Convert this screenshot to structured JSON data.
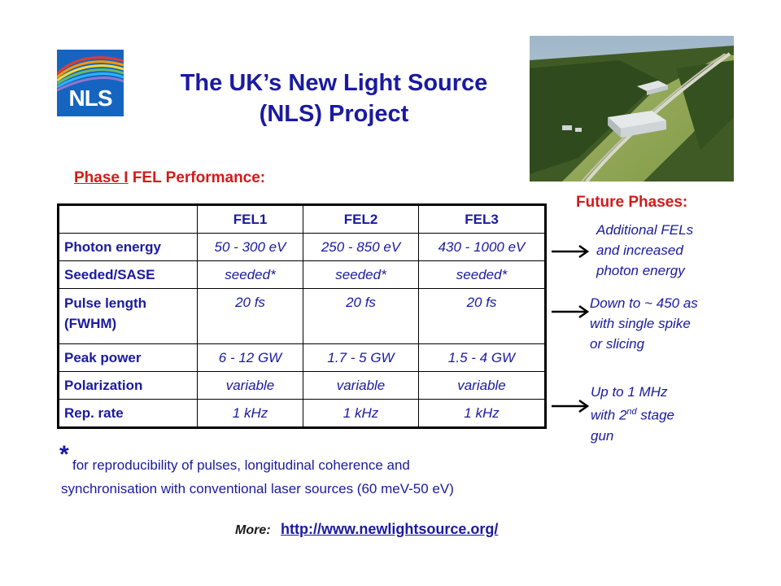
{
  "logo": {
    "text": "NLS",
    "icon": "nls-logo-icon"
  },
  "title": {
    "line1": "The UK’s New Light Source",
    "line2": "(NLS) Project"
  },
  "photo": {
    "icon": "aerial-site-photo"
  },
  "phase": {
    "underlined": "Phase I",
    "rest": " FEL Performance:"
  },
  "table": {
    "headers": [
      "",
      "FEL1",
      "FEL2",
      "FEL3"
    ],
    "rows": [
      {
        "label": "Photon energy",
        "values": [
          "50 - 300 eV",
          "250 - 850 eV",
          "430 - 1000 eV"
        ]
      },
      {
        "label": "Seeded/SASE",
        "values": [
          "seeded*",
          "seeded*",
          "seeded*"
        ]
      },
      {
        "label_line1": "Pulse length",
        "label_line2": "(FWHM)",
        "values": [
          "20 fs",
          "20 fs",
          "20 fs"
        ]
      },
      {
        "label": "Peak power",
        "values": [
          "6 - 12 GW",
          "1.7 - 5 GW",
          "1.5 - 4 GW"
        ]
      },
      {
        "label": "Polarization",
        "values": [
          "variable",
          "variable",
          "variable"
        ]
      },
      {
        "label": "Rep. rate",
        "values": [
          "1 kHz",
          "1 kHz",
          "1 kHz"
        ]
      }
    ]
  },
  "future": {
    "heading": "Future Phases:",
    "notes": [
      {
        "lines": [
          "Additional FELs",
          "and increased",
          "photon energy"
        ]
      },
      {
        "lines": [
          "Down to ~ 450 as",
          "with single spike",
          "or slicing"
        ]
      },
      {
        "line1": "Up to 1 MHz",
        "line2_pre": "with 2",
        "line2_sup": "nd",
        "line2_post": " stage",
        "line3": "gun"
      }
    ]
  },
  "footnote": {
    "star": "*",
    "line1": "for reproducibility of pulses, longitudinal coherence and",
    "line2": "synchronisation with conventional laser sources (60 meV-50 eV)"
  },
  "more": {
    "label": "More:",
    "link": "http://www.newlightsource.org/"
  }
}
